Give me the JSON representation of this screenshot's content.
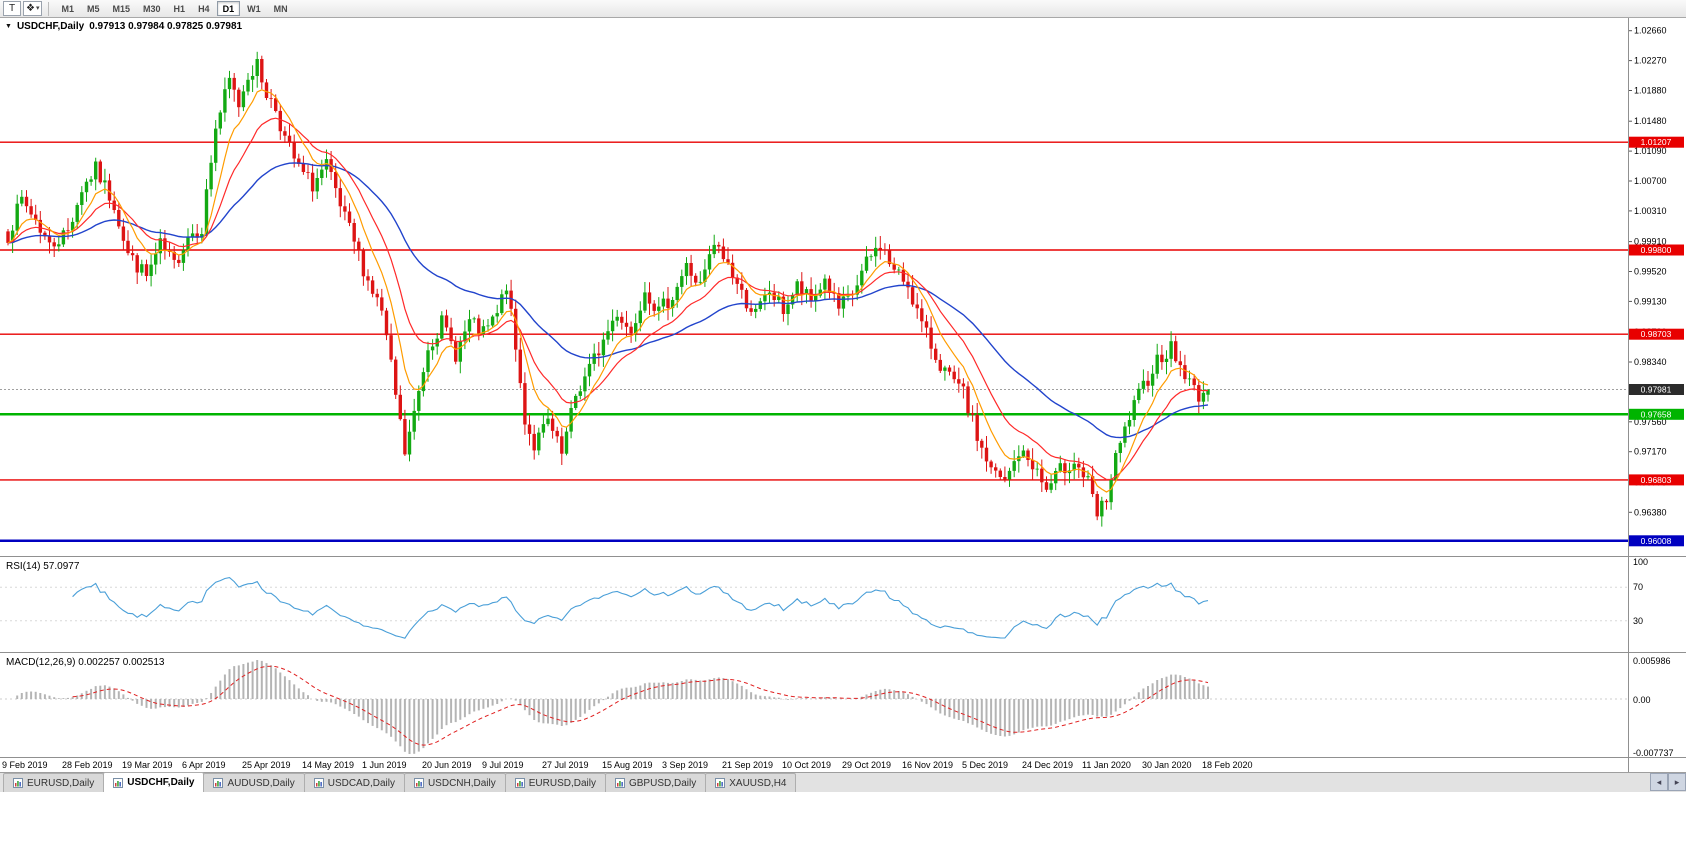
{
  "toolbar": {
    "pointer_label": "T",
    "timeframes": [
      "M1",
      "M5",
      "M15",
      "M30",
      "H1",
      "H4",
      "D1",
      "W1",
      "MN"
    ],
    "active_timeframe": "D1"
  },
  "icons": {
    "shapes": "❖",
    "caret_down": "▾",
    "chart_dropdown": "▼",
    "tab_scroll_left": "◂",
    "tab_scroll_right": "▸"
  },
  "chart": {
    "symbol_label": "USDCHF,Daily",
    "ohlc_label": "0.97913 0.97984 0.97825 0.97981",
    "colors": {
      "up": "#13a913",
      "down": "#dd1414",
      "ma_fast": "#ff9c00",
      "ma_mid": "#ff2a2a",
      "ma_slow": "#2244cc",
      "rsi_line": "#4a9fd8",
      "macd_hist": "#b4b4b4",
      "macd_signal": "#e02020",
      "current_badge": "#2b2b2b",
      "axis_text": "#000000"
    }
  },
  "chart_data": {
    "type": "candlestick",
    "symbol": "USDCHF",
    "timeframe": "Daily",
    "bar_count": 261,
    "bar_spacing": 4.6154,
    "bars_per_label": 13,
    "noise_seed": 7,
    "y_range": [
      0.9581,
      1.028
    ],
    "y_ticks": [
      "1.02660",
      "1.02270",
      "1.01880",
      "1.01480",
      "1.01090",
      "1.00700",
      "1.00310",
      "0.99910",
      "0.99520",
      "0.99130",
      "0.98730",
      "0.98340",
      "0.97950",
      "0.97560",
      "0.97170",
      "0.96770",
      "0.96380",
      "0.95990"
    ],
    "x_labels": [
      "9 Feb 2019",
      "28 Feb 2019",
      "19 Mar 2019",
      "6 Apr 2019",
      "25 Apr 2019",
      "14 May 2019",
      "1 Jun 2019",
      "20 Jun 2019",
      "9 Jul 2019",
      "27 Jul 2019",
      "15 Aug 2019",
      "3 Sep 2019",
      "21 Sep 2019",
      "10 Oct 2019",
      "29 Oct 2019",
      "16 Nov 2019",
      "5 Dec 2019",
      "24 Dec 2019",
      "11 Jan 2020",
      "30 Jan 2020",
      "18 Feb 2020"
    ],
    "horizontal_lines": [
      {
        "price": 1.01207,
        "label": "1.01207",
        "color": "#e80000",
        "width": 1.4
      },
      {
        "price": 0.998,
        "label": "0.99800",
        "color": "#e80000",
        "width": 1.4
      },
      {
        "price": 0.98703,
        "label": "0.98703",
        "color": "#e80000",
        "width": 1.4
      },
      {
        "price": 0.97658,
        "label": "0.97658",
        "color": "#00b400",
        "width": 2.5
      },
      {
        "price": 0.96803,
        "label": "0.96803",
        "color": "#e80000",
        "width": 1.4
      },
      {
        "price": 0.96008,
        "label": "0.96008",
        "color": "#0000c0",
        "width": 2.5
      }
    ],
    "current_price": {
      "value": 0.97981,
      "label": "0.97981"
    },
    "last_ohlc": {
      "open": 0.97913,
      "high": 0.97984,
      "low": 0.97825,
      "close": 0.97981
    },
    "moving_averages": {
      "fast_period": 8,
      "mid_period": 17,
      "slow_period": 45
    },
    "price_anchors": [
      [
        0,
        1.0
      ],
      [
        3,
        1.0045
      ],
      [
        6,
        1.002
      ],
      [
        9,
        0.9985
      ],
      [
        13,
        1.0005
      ],
      [
        16,
        1.006
      ],
      [
        19,
        1.0085
      ],
      [
        23,
        1.004
      ],
      [
        26,
        0.9975
      ],
      [
        30,
        0.9945
      ],
      [
        33,
        0.9985
      ],
      [
        36,
        0.996
      ],
      [
        39,
        1.0
      ],
      [
        42,
        1.001
      ],
      [
        45,
        1.014
      ],
      [
        48,
        1.02
      ],
      [
        50,
        1.017
      ],
      [
        52,
        1.021
      ],
      [
        54,
        1.022
      ],
      [
        56,
        1.0185
      ],
      [
        58,
        1.0165
      ],
      [
        60,
        1.0125
      ],
      [
        63,
        1.0085
      ],
      [
        66,
        1.0065
      ],
      [
        69,
        1.009
      ],
      [
        72,
        1.0035
      ],
      [
        75,
        0.999
      ],
      [
        78,
        0.994
      ],
      [
        81,
        0.99
      ],
      [
        84,
        0.979
      ],
      [
        86,
        0.9715
      ],
      [
        88,
        0.9765
      ],
      [
        91,
        0.9855
      ],
      [
        94,
        0.9885
      ],
      [
        97,
        0.9845
      ],
      [
        100,
        0.9885
      ],
      [
        103,
        0.987
      ],
      [
        106,
        0.9895
      ],
      [
        108,
        0.9935
      ],
      [
        110,
        0.985
      ],
      [
        112,
        0.976
      ],
      [
        114,
        0.9725
      ],
      [
        117,
        0.9755
      ],
      [
        120,
        0.9712
      ],
      [
        123,
        0.979
      ],
      [
        126,
        0.9825
      ],
      [
        129,
        0.9862
      ],
      [
        132,
        0.99
      ],
      [
        135,
        0.9872
      ],
      [
        138,
        0.9932
      ],
      [
        141,
        0.9898
      ],
      [
        144,
        0.9922
      ],
      [
        147,
        0.9958
      ],
      [
        150,
        0.9932
      ],
      [
        153,
        0.9986
      ],
      [
        156,
        0.9962
      ],
      [
        159,
        0.9922
      ],
      [
        162,
        0.9896
      ],
      [
        165,
        0.9926
      ],
      [
        168,
        0.9902
      ],
      [
        171,
        0.9932
      ],
      [
        174,
        0.9912
      ],
      [
        177,
        0.9942
      ],
      [
        180,
        0.9902
      ],
      [
        183,
        0.9922
      ],
      [
        186,
        0.9962
      ],
      [
        189,
        0.9988
      ],
      [
        192,
        0.9952
      ],
      [
        195,
        0.9936
      ],
      [
        198,
        0.9882
      ],
      [
        201,
        0.9842
      ],
      [
        204,
        0.9812
      ],
      [
        207,
        0.9792
      ],
      [
        210,
        0.9736
      ],
      [
        213,
        0.9692
      ],
      [
        216,
        0.9676
      ],
      [
        219,
        0.9716
      ],
      [
        222,
        0.9702
      ],
      [
        225,
        0.9666
      ],
      [
        228,
        0.9692
      ],
      [
        231,
        0.9706
      ],
      [
        234,
        0.9676
      ],
      [
        236,
        0.9632
      ],
      [
        238,
        0.9656
      ],
      [
        240,
        0.9706
      ],
      [
        243,
        0.9762
      ],
      [
        246,
        0.9802
      ],
      [
        249,
        0.9838
      ],
      [
        252,
        0.9852
      ],
      [
        254,
        0.9828
      ],
      [
        256,
        0.9806
      ],
      [
        258,
        0.9792
      ],
      [
        260,
        0.97981
      ]
    ]
  },
  "rsi": {
    "label": "RSI(14) 57.0977",
    "period": 14,
    "value": 57.0977,
    "axis_labels": [
      "100",
      "70",
      "30"
    ]
  },
  "macd": {
    "label": "MACD(12,26,9) 0.002257 0.002513",
    "fast": 12,
    "slow": 26,
    "signal": 9,
    "values": [
      0.002257,
      0.002513
    ],
    "axis_top": "0.005986",
    "axis_zero": "0.00",
    "axis_bottom": "-0.007737"
  },
  "tabs": [
    {
      "label": "EURUSD,Daily",
      "active": false
    },
    {
      "label": "USDCHF,Daily",
      "active": true
    },
    {
      "label": "AUDUSD,Daily",
      "active": false
    },
    {
      "label": "USDCAD,Daily",
      "active": false
    },
    {
      "label": "USDCNH,Daily",
      "active": false
    },
    {
      "label": "EURUSD,Daily",
      "active": false
    },
    {
      "label": "GBPUSD,Daily",
      "active": false
    },
    {
      "label": "XAUUSD,H4",
      "active": false
    }
  ]
}
